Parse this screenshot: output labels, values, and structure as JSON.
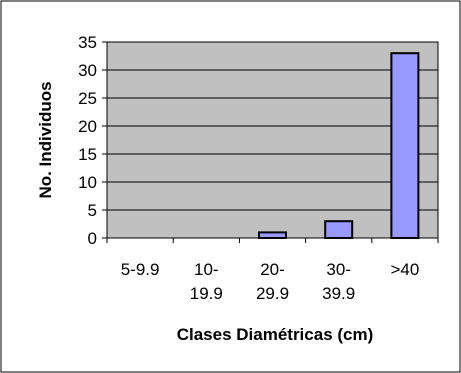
{
  "chart_data": {
    "type": "bar",
    "title": "",
    "xlabel": "Clases Diamétricas (cm)",
    "ylabel": "No. Individuos",
    "categories": [
      [
        "5-9.9"
      ],
      [
        "10-",
        "19.9"
      ],
      [
        "20-",
        "29.9"
      ],
      [
        "30-",
        "39.9"
      ],
      [
        ">40"
      ]
    ],
    "values": [
      0,
      0,
      1,
      3,
      33
    ],
    "ylim": [
      0,
      35
    ],
    "yticks": [
      0,
      5,
      10,
      15,
      20,
      25,
      30,
      35
    ],
    "grid": true,
    "legend": "none"
  },
  "colors": {
    "plot_background": "#c0c0c0",
    "bar_fill": "#9999ff",
    "bar_stroke": "#000000",
    "gridline": "#000000",
    "frame": "#000000"
  }
}
